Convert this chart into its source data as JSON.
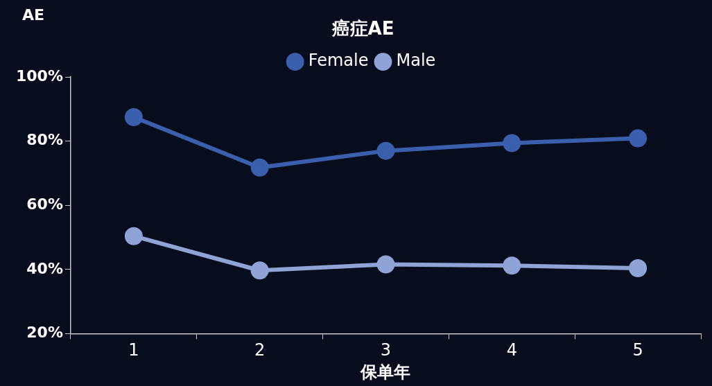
{
  "chart_data": {
    "type": "line",
    "title": "癌症AE",
    "xlabel": "保单年",
    "ylabel": "AE",
    "categories": [
      "1",
      "2",
      "3",
      "4",
      "5"
    ],
    "series": [
      {
        "name": "Female",
        "color": "#3a5fad",
        "values": [
          87.5,
          71.8,
          77,
          79.4,
          80.9
        ]
      },
      {
        "name": "Male",
        "color": "#8fa3d6",
        "values": [
          50.4,
          39.7,
          41.6,
          41.2,
          40.4
        ]
      }
    ],
    "ylim": [
      20,
      100
    ],
    "yticks": [
      {
        "value": 20,
        "label": "20%"
      },
      {
        "value": 40,
        "label": "40%"
      },
      {
        "value": 60,
        "label": "60%"
      },
      {
        "value": 80,
        "label": "80%"
      },
      {
        "value": 100,
        "label": "100%"
      }
    ],
    "grid": false,
    "legend": "top",
    "marker": "circle",
    "line_style": "solid"
  }
}
